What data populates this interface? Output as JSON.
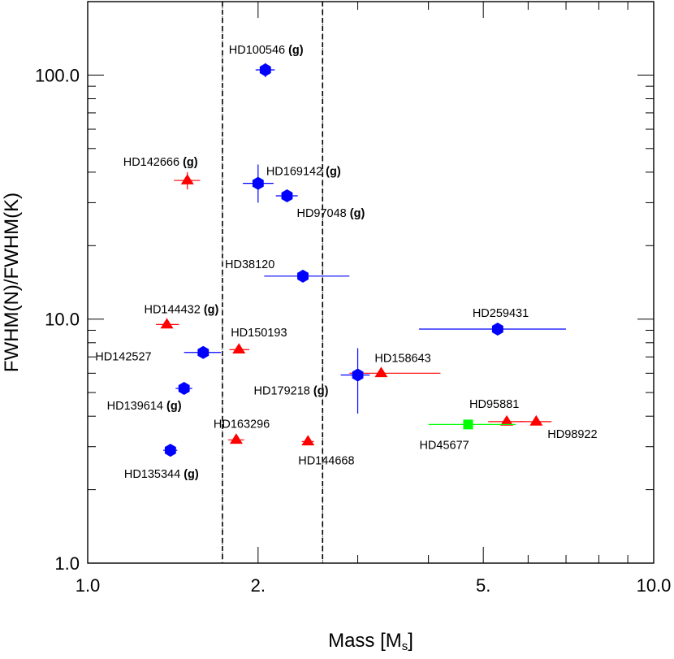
{
  "chart_data": {
    "type": "scatter",
    "xlabel": "Mass [M",
    "xlabel_sub": "s",
    "xlabel_end": "]",
    "ylabel": "FWHM(N)/FWHM(K)",
    "xscale": "log",
    "yscale": "log",
    "xlim": [
      1.0,
      10.0
    ],
    "ylim": [
      1.0,
      200.0
    ],
    "xticks": [
      {
        "value": 1.0,
        "label": "1.0"
      },
      {
        "value": 2.0,
        "label": "2."
      },
      {
        "value": 5.0,
        "label": "5."
      },
      {
        "value": 10.0,
        "label": "10.0"
      }
    ],
    "yticks": [
      {
        "value": 1.0,
        "label": "1.0"
      },
      {
        "value": 10.0,
        "label": "10.0"
      },
      {
        "value": 100.0,
        "label": "100.0"
      }
    ],
    "mass_band": [
      1.73,
      2.6
    ],
    "colors": {
      "hexagon": "#0000ff",
      "triangle": "#ff0000",
      "square": "#00ff00"
    },
    "points": [
      {
        "name": "HD100546",
        "g": true,
        "x": 2.06,
        "y": 105,
        "xerr": [
          1.98,
          2.14
        ],
        "yerr": [
          98,
          112
        ],
        "marker": "hexagon",
        "color": "#0000ff"
      },
      {
        "name": "HD142666",
        "g": true,
        "x": 1.5,
        "y": 37,
        "xerr": [
          1.42,
          1.58
        ],
        "yerr": [
          34,
          40
        ],
        "marker": "triangle",
        "color": "#ff0000"
      },
      {
        "name": "HD169142",
        "g": true,
        "x": 2.0,
        "y": 36,
        "xerr": [
          1.88,
          2.13
        ],
        "yerr": [
          30,
          43
        ],
        "marker": "hexagon",
        "color": "#0000ff"
      },
      {
        "name": "HD97048",
        "g": true,
        "x": 2.25,
        "y": 32,
        "xerr": [
          2.15,
          2.35
        ],
        "yerr": [
          31,
          33
        ],
        "marker": "hexagon",
        "color": "#0000ff"
      },
      {
        "name": "HD38120",
        "g": false,
        "x": 2.4,
        "y": 15,
        "xerr": [
          2.05,
          2.9
        ],
        "yerr": [
          14.5,
          15.5
        ],
        "marker": "hexagon",
        "color": "#0000ff"
      },
      {
        "name": "HD144432",
        "g": true,
        "x": 1.38,
        "y": 9.5,
        "xerr": [
          1.32,
          1.45
        ],
        "yerr": [
          9.3,
          9.7
        ],
        "marker": "triangle",
        "color": "#ff0000"
      },
      {
        "name": "HD259431",
        "g": false,
        "x": 5.3,
        "y": 9.1,
        "xerr": [
          3.85,
          7.0
        ],
        "yerr": [
          8.8,
          9.4
        ],
        "marker": "hexagon",
        "color": "#0000ff"
      },
      {
        "name": "HD150193",
        "g": false,
        "x": 1.85,
        "y": 7.5,
        "xerr": [
          1.78,
          1.93
        ],
        "yerr": [
          7.3,
          7.7
        ],
        "marker": "triangle",
        "color": "#ff0000"
      },
      {
        "name": "HD142527",
        "g": false,
        "x": 1.6,
        "y": 7.3,
        "xerr": [
          1.48,
          1.72
        ],
        "yerr": [
          7.1,
          7.5
        ],
        "marker": "hexagon",
        "color": "#0000ff"
      },
      {
        "name": "HD158643",
        "g": false,
        "x": 3.3,
        "y": 6.0,
        "xerr": [
          2.9,
          4.2
        ],
        "yerr": [
          5.8,
          6.2
        ],
        "marker": "triangle",
        "color": "#ff0000"
      },
      {
        "name": "HD179218",
        "g": true,
        "x": 3.0,
        "y": 5.9,
        "xerr": [
          2.8,
          3.15
        ],
        "yerr": [
          4.1,
          7.6
        ],
        "marker": "hexagon",
        "color": "#0000ff"
      },
      {
        "name": "HD139614",
        "g": true,
        "x": 1.48,
        "y": 5.2,
        "xerr": [
          1.43,
          1.53
        ],
        "yerr": [
          5.0,
          5.4
        ],
        "marker": "hexagon",
        "color": "#0000ff"
      },
      {
        "name": "HD95881",
        "g": false,
        "x": 5.5,
        "y": 3.8,
        "xerr": [
          5.1,
          5.9
        ],
        "yerr": [
          3.7,
          3.9
        ],
        "marker": "triangle",
        "color": "#ff0000"
      },
      {
        "name": "HD98922",
        "g": false,
        "x": 6.2,
        "y": 3.8,
        "xerr": [
          5.8,
          6.6
        ],
        "yerr": [
          3.7,
          3.9
        ],
        "marker": "triangle",
        "color": "#ff0000"
      },
      {
        "name": "HD45677",
        "g": false,
        "x": 4.7,
        "y": 3.7,
        "xerr": [
          4.0,
          5.7
        ],
        "yerr": [
          3.6,
          3.8
        ],
        "marker": "square",
        "color": "#00ff00"
      },
      {
        "name": "HD163296",
        "g": false,
        "x": 1.83,
        "y": 3.2,
        "xerr": [
          1.77,
          1.89
        ],
        "yerr": [
          3.1,
          3.3
        ],
        "marker": "triangle",
        "color": "#ff0000"
      },
      {
        "name": "HD144668",
        "g": false,
        "x": 2.45,
        "y": 3.15,
        "xerr": [
          2.39,
          2.51
        ],
        "yerr": [
          3.05,
          3.25
        ],
        "marker": "triangle",
        "color": "#ff0000"
      },
      {
        "name": "HD135344",
        "g": true,
        "x": 1.4,
        "y": 2.9,
        "xerr": [
          1.36,
          1.44
        ],
        "yerr": [
          2.75,
          3.05
        ],
        "marker": "hexagon",
        "color": "#0000ff"
      }
    ]
  }
}
